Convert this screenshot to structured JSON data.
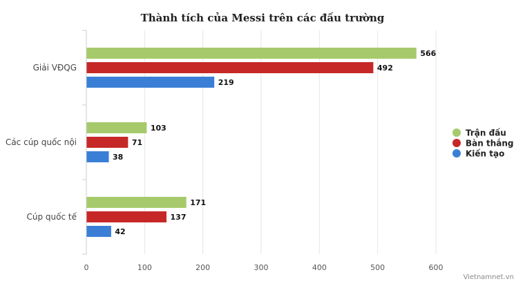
{
  "chart_data": {
    "type": "bar",
    "orientation": "horizontal",
    "title": "Thành tích của Messi trên các đấu trường",
    "categories": [
      "Giải VĐQG",
      "Các cúp quốc nội",
      "Cúp quốc tế"
    ],
    "series": [
      {
        "name": "Trận đấu",
        "color": "#a6ca6b",
        "values": [
          566,
          103,
          171
        ]
      },
      {
        "name": "Bàn thắng",
        "color": "#c62828",
        "values": [
          492,
          71,
          137
        ]
      },
      {
        "name": "Kiến tạo",
        "color": "#3a7fd5",
        "values": [
          219,
          38,
          42
        ]
      }
    ],
    "xlim": [
      0,
      600
    ],
    "x_ticks": [
      0,
      100,
      200,
      300,
      400,
      500,
      600
    ],
    "grid": "vertical",
    "legend_position": "right",
    "xlabel": "",
    "ylabel": ""
  },
  "credit": "Vietnamnet.vn"
}
